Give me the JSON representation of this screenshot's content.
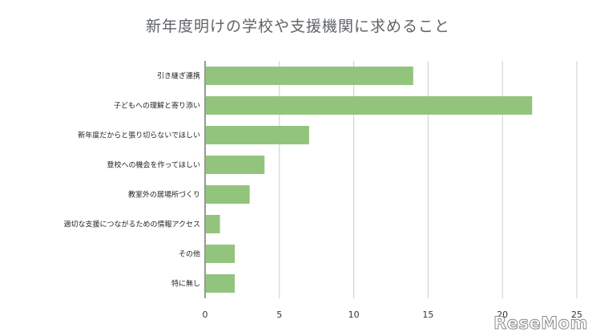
{
  "chart_data": {
    "type": "bar",
    "orientation": "horizontal",
    "title": "新年度明けの学校や支援機関に求めること",
    "categories": [
      "引き継ぎ連携",
      "子どもへの理解と寄り添い",
      "新年度だからと張り切らないでほしい",
      "登校への機会を作ってほしい",
      "教室外の居場所づくり",
      "適切な支援につながるための情報アクセス",
      "その他",
      "特に無し"
    ],
    "values": [
      14,
      22,
      7,
      4,
      3,
      1,
      2,
      2
    ],
    "xlim": [
      0,
      25
    ],
    "xticks": [
      0,
      5,
      10,
      15,
      20,
      25
    ],
    "grid": true,
    "bar_color": "#93c47d",
    "grid_color": "#cccccc"
  },
  "watermark": "ReseMom"
}
